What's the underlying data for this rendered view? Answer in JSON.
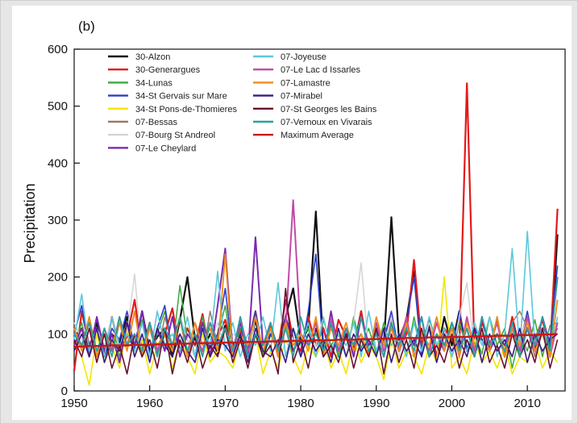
{
  "chart_data": {
    "type": "line",
    "panel_label": "(b)",
    "title": "",
    "xlabel": "",
    "ylabel": "Precipitation",
    "xlim": [
      1950,
      2015
    ],
    "ylim": [
      0,
      600
    ],
    "x_ticks": [
      1950,
      1960,
      1970,
      1980,
      1990,
      2000,
      2010
    ],
    "y_ticks": [
      0,
      100,
      200,
      300,
      400,
      500,
      600
    ],
    "grid": false,
    "legend_position": "top-left",
    "x": [
      1950,
      1951,
      1952,
      1953,
      1954,
      1955,
      1956,
      1957,
      1958,
      1959,
      1960,
      1961,
      1962,
      1963,
      1964,
      1965,
      1966,
      1967,
      1968,
      1969,
      1970,
      1971,
      1972,
      1973,
      1974,
      1975,
      1976,
      1977,
      1978,
      1979,
      1980,
      1981,
      1982,
      1983,
      1984,
      1985,
      1986,
      1987,
      1988,
      1989,
      1990,
      1991,
      1992,
      1993,
      1994,
      1995,
      1996,
      1997,
      1998,
      1999,
      2000,
      2001,
      2002,
      2003,
      2004,
      2005,
      2006,
      2007,
      2008,
      2009,
      2010,
      2011,
      2012,
      2013,
      2014
    ],
    "series": [
      {
        "name": "30-Alzon",
        "color": "#111111",
        "width": 2.2,
        "values": [
          95,
          110,
          70,
          120,
          60,
          100,
          85,
          130,
          75,
          140,
          70,
          95,
          110,
          60,
          125,
          200,
          90,
          70,
          100,
          65,
          115,
          80,
          95,
          70,
          125,
          60,
          100,
          75,
          130,
          180,
          85,
          110,
          315,
          70,
          120,
          60,
          100,
          75,
          140,
          65,
          110,
          80,
          305,
          90,
          125,
          210,
          70,
          115,
          60,
          130,
          80,
          140,
          70,
          110,
          90,
          75,
          125,
          60,
          100,
          85,
          130,
          75,
          110,
          60,
          275
        ]
      },
      {
        "name": "30-Generargues",
        "color": "#e21a1a",
        "width": 2.2,
        "values": [
          35,
          140,
          80,
          110,
          60,
          130,
          75,
          95,
          160,
          70,
          120,
          65,
          100,
          145,
          70,
          110,
          80,
          135,
          60,
          95,
          125,
          70,
          105,
          80,
          140,
          65,
          115,
          75,
          160,
          90,
          70,
          130,
          80,
          110,
          60,
          125,
          95,
          70,
          140,
          65,
          110,
          85,
          130,
          70,
          100,
          230,
          80,
          125,
          60,
          110,
          90,
          75,
          540,
          70,
          120,
          85,
          100,
          65,
          130,
          75,
          110,
          90,
          125,
          70,
          320
        ]
      },
      {
        "name": "34-Lunas",
        "color": "#3aa83a",
        "width": 1.5,
        "values": [
          80,
          120,
          60,
          100,
          70,
          130,
          60,
          110,
          80,
          125,
          65,
          100,
          140,
          70,
          185,
          90,
          60,
          130,
          75,
          95,
          150,
          60,
          110,
          80,
          130,
          65,
          100,
          75,
          120,
          70,
          90,
          110,
          60,
          125,
          80,
          100,
          60,
          130,
          75,
          110,
          65,
          120,
          80,
          100,
          60,
          130,
          70,
          110,
          80,
          95,
          60,
          120,
          75,
          100,
          65,
          130,
          80,
          110,
          40,
          100,
          70,
          125,
          60,
          115,
          120
        ]
      },
      {
        "name": "34-St Gervais sur Mare",
        "color": "#2a3fc8",
        "width": 1.6,
        "values": [
          100,
          150,
          70,
          130,
          60,
          110,
          90,
          140,
          75,
          120,
          60,
          110,
          150,
          70,
          130,
          90,
          60,
          120,
          75,
          100,
          180,
          65,
          120,
          80,
          140,
          70,
          100,
          75,
          130,
          90,
          60,
          140,
          240,
          70,
          120,
          60,
          110,
          80,
          130,
          70,
          100,
          90,
          140,
          70,
          120,
          200,
          60,
          130,
          80,
          100,
          60,
          140,
          75,
          110,
          90,
          70,
          130,
          60,
          120,
          80,
          140,
          70,
          110,
          90,
          220
        ]
      },
      {
        "name": "34-St Pons-de-Thomieres",
        "color": "#f2e600",
        "width": 1.6,
        "values": [
          90,
          60,
          10,
          100,
          50,
          80,
          40,
          110,
          60,
          90,
          30,
          80,
          100,
          40,
          90,
          60,
          30,
          100,
          50,
          70,
          60,
          40,
          90,
          50,
          100,
          30,
          70,
          40,
          90,
          60,
          30,
          80,
          60,
          90,
          40,
          70,
          30,
          90,
          50,
          80,
          60,
          20,
          90,
          40,
          70,
          60,
          30,
          80,
          50,
          200,
          40,
          60,
          30,
          90,
          50,
          70,
          40,
          80,
          30,
          60,
          50,
          90,
          40,
          70,
          50
        ]
      },
      {
        "name": "07-Bessas",
        "color": "#a0786a",
        "width": 1.5,
        "values": [
          110,
          80,
          130,
          70,
          100,
          60,
          120,
          80,
          140,
          70,
          110,
          60,
          130,
          80,
          100,
          70,
          120,
          60,
          140,
          80,
          110,
          70,
          130,
          60,
          100,
          80,
          120,
          70,
          110,
          60,
          130,
          80,
          100,
          70,
          120,
          60,
          110,
          80,
          130,
          70,
          100,
          60,
          120,
          80,
          110,
          70,
          130,
          60,
          100,
          80,
          120,
          70,
          110,
          60,
          130,
          80,
          100,
          70,
          120,
          140,
          110,
          60,
          130,
          80,
          110
        ]
      },
      {
        "name": "07-Bourg St Andreol",
        "color": "#d4d4d4",
        "width": 1.5,
        "values": [
          120,
          90,
          60,
          110,
          80,
          130,
          70,
          100,
          205,
          60,
          120,
          80,
          100,
          70,
          130,
          90,
          60,
          110,
          80,
          120,
          70,
          100,
          90,
          60,
          130,
          80,
          110,
          70,
          120,
          90,
          60,
          100,
          80,
          130,
          70,
          110,
          60,
          120,
          225,
          70,
          100,
          80,
          130,
          60,
          110,
          90,
          70,
          120,
          80,
          100,
          60,
          130,
          190,
          70,
          110,
          80,
          120,
          60,
          100,
          90,
          130,
          70,
          110,
          80,
          120
        ]
      },
      {
        "name": "07-Le Cheylard",
        "color": "#7a2ab0",
        "width": 2.0,
        "values": [
          80,
          110,
          60,
          130,
          70,
          100,
          50,
          120,
          80,
          140,
          60,
          110,
          70,
          130,
          60,
          100,
          80,
          120,
          60,
          150,
          250,
          70,
          120,
          60,
          270,
          80,
          110,
          60,
          130,
          70,
          100,
          80,
          120,
          60,
          140,
          70,
          110,
          60,
          130,
          80,
          100,
          60,
          120,
          70,
          110,
          80,
          130,
          60,
          100,
          70,
          120,
          80,
          110,
          60,
          130,
          70,
          100,
          80,
          120,
          60,
          110,
          70,
          130,
          80,
          200
        ]
      },
      {
        "name": "07-Joyeuse",
        "color": "#5cc8dc",
        "width": 1.6,
        "values": [
          90,
          170,
          70,
          110,
          60,
          130,
          80,
          100,
          70,
          120,
          60,
          140,
          80,
          100,
          70,
          130,
          60,
          110,
          80,
          210,
          70,
          120,
          60,
          100,
          80,
          130,
          70,
          190,
          60,
          110,
          80,
          120,
          60,
          130,
          70,
          100,
          80,
          120,
          60,
          140,
          70,
          110,
          80,
          100,
          60,
          120,
          70,
          130,
          80,
          110,
          60,
          100,
          70,
          120,
          80,
          130,
          60,
          100,
          250,
          70,
          280,
          80,
          110,
          60,
          130
        ]
      },
      {
        "name": "07-Le Lac d Issarles",
        "color": "#c24aa8",
        "width": 2.0,
        "values": [
          100,
          80,
          120,
          60,
          110,
          70,
          130,
          80,
          100,
          60,
          120,
          70,
          110,
          80,
          130,
          60,
          100,
          70,
          120,
          80,
          110,
          60,
          130,
          70,
          100,
          80,
          120,
          60,
          110,
          335,
          100,
          80,
          120,
          60,
          130,
          70,
          110,
          80,
          100,
          60,
          120,
          70,
          110,
          80,
          130,
          60,
          100,
          70,
          120,
          80,
          110,
          60,
          130,
          70,
          100,
          80,
          120,
          60,
          110,
          70,
          130,
          80,
          100,
          60,
          120
        ]
      },
      {
        "name": "07-Lamastre",
        "color": "#f08c1c",
        "width": 1.8,
        "values": [
          110,
          70,
          130,
          60,
          100,
          80,
          120,
          70,
          140,
          60,
          110,
          80,
          100,
          70,
          130,
          60,
          120,
          80,
          110,
          70,
          240,
          60,
          100,
          80,
          130,
          70,
          110,
          60,
          120,
          80,
          100,
          70,
          130,
          60,
          110,
          80,
          120,
          70,
          100,
          60,
          130,
          80,
          110,
          70,
          120,
          60,
          100,
          80,
          130,
          70,
          110,
          60,
          120,
          80,
          100,
          70,
          130,
          60,
          110,
          80,
          120,
          70,
          100,
          60,
          160
        ]
      },
      {
        "name": "07-Mirabel",
        "color": "#3a1a8a",
        "width": 1.6,
        "values": [
          70,
          100,
          60,
          110,
          50,
          90,
          70,
          120,
          60,
          100,
          50,
          110,
          80,
          60,
          100,
          70,
          50,
          110,
          60,
          90,
          80,
          60,
          100,
          50,
          110,
          70,
          60,
          90,
          50,
          110,
          60,
          100,
          70,
          90,
          50,
          110,
          60,
          100,
          70,
          90,
          60,
          110,
          50,
          100,
          70,
          90,
          60,
          110,
          50,
          100,
          70,
          90,
          60,
          110,
          50,
          100,
          70,
          90,
          60,
          110,
          50,
          100,
          70,
          90,
          100
        ]
      },
      {
        "name": "07-St Georges les Bains",
        "color": "#6a1030",
        "width": 1.6,
        "values": [
          90,
          60,
          110,
          50,
          100,
          40,
          80,
          30,
          100,
          60,
          90,
          40,
          110,
          30,
          90,
          50,
          100,
          40,
          80,
          60,
          110,
          50,
          90,
          40,
          100,
          60,
          80,
          30,
          180,
          50,
          90,
          40,
          110,
          60,
          80,
          50,
          100,
          40,
          90,
          60,
          110,
          30,
          100,
          50,
          90,
          40,
          110,
          60,
          80,
          50,
          100,
          40,
          90,
          60,
          110,
          50,
          80,
          40,
          100,
          60,
          90,
          50,
          110,
          40,
          90
        ]
      },
      {
        "name": "07-Vernoux en Vivarais",
        "color": "#20a89a",
        "width": 1.6,
        "values": [
          100,
          80,
          120,
          70,
          110,
          60,
          130,
          80,
          100,
          70,
          120,
          60,
          110,
          80,
          130,
          70,
          100,
          60,
          120,
          80,
          110,
          70,
          130,
          60,
          100,
          80,
          120,
          70,
          110,
          60,
          130,
          80,
          100,
          70,
          120,
          60,
          110,
          80,
          130,
          70,
          100,
          60,
          120,
          80,
          110,
          70,
          130,
          60,
          100,
          80,
          120,
          70,
          110,
          60,
          130,
          80,
          100,
          70,
          120,
          60,
          110,
          80,
          130,
          70,
          200
        ]
      },
      {
        "name": "Maximum Average",
        "color": "#c81818",
        "width": 2.4,
        "values": [
          78,
          78,
          79,
          79,
          79,
          80,
          80,
          80,
          81,
          81,
          81,
          82,
          82,
          82,
          83,
          83,
          83,
          84,
          84,
          84,
          85,
          85,
          85,
          86,
          86,
          86,
          87,
          87,
          87,
          88,
          88,
          88,
          89,
          89,
          89,
          90,
          90,
          90,
          91,
          91,
          91,
          92,
          92,
          92,
          93,
          93,
          93,
          94,
          94,
          94,
          95,
          95,
          95,
          96,
          96,
          96,
          97,
          97,
          97,
          98,
          98,
          98,
          99,
          99,
          100
        ]
      }
    ]
  }
}
